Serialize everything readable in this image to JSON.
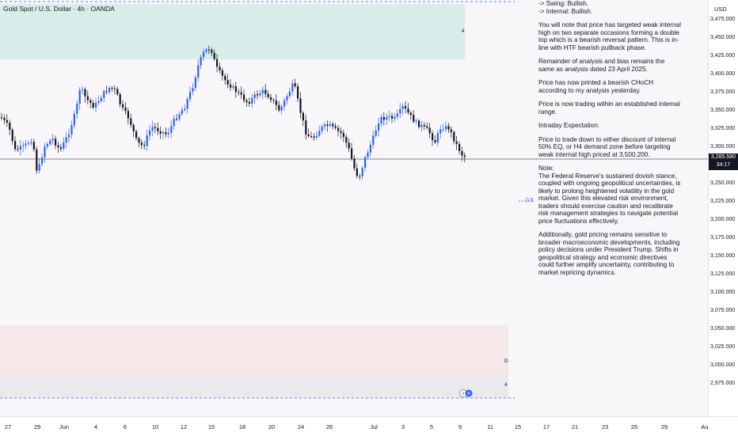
{
  "header": {
    "symbol_title": "Gold Spot / U.S. Dollar · 4h · OANDA"
  },
  "price_scale": {
    "currency": "USD",
    "labels": [
      "3,475.000",
      "3,450.000",
      "3,425.000",
      "3,400.000",
      "3,375.000",
      "3,350.000",
      "3,325.000",
      "3,300.000",
      "3,250.000",
      "3,225.000",
      "3,200.000",
      "3,175.000",
      "3,150.000",
      "3,125.000",
      "3,100.000",
      "3,075.000",
      "3,050.000",
      "3,025.000",
      "3,000.000",
      "2,975.000"
    ],
    "last_price": "3,285.580",
    "countdown": "34:17"
  },
  "time_scale": {
    "labels": [
      "27",
      "29",
      "Jun",
      "4",
      "6",
      "10",
      "12",
      "15",
      "18",
      "20",
      "24",
      "26",
      "Jul",
      "3",
      "5",
      "9",
      "11",
      "15",
      "17",
      "21",
      "23",
      "25",
      "29",
      "Au"
    ]
  },
  "annotations": {
    "fib_label": "0.5",
    "zone_marker_top": "4",
    "zone_marker_d": "D",
    "zone_marker_bottom": "4"
  },
  "analysis": {
    "line1": "-> Swing:  Bullish.",
    "line2": "-> Internal:  Bullish.",
    "p1": "You will note that price has targeted weak internal high on two separate occasions forming a double top which is a bearish reversal pattern. This is in-line with HTF bearish pullback phase.",
    "p2": "Remainder of analysis and bias remains the same as analysis dated 23 April 2025.",
    "p3": "Price has now printed a bearish CHoCH according to my analysis yesterday.",
    "p4": "Price is now trading within an established internal range.",
    "p5": "Intraday Expectation:",
    "p6": "Price to trade down to either discount of internal 50% EQ, or H4 demand zone before targeting weak internal high priced at 3,500.200.",
    "p7": "Note:",
    "p8": "The Federal Reserve's sustained dovish stance, coupled with ongoing geopolitical uncertainties, is likely to prolong heightened volatility in the gold market. Given this elevated risk environment, traders should exercise caution and recalibrate risk management strategies to navigate potential price fluctuations effectively.",
    "p9": "Additionally, gold pricing remains sensitive to broader macroeconomic developments, including policy decisions under President Trump. Shifts in geopolitical strategy and economic directives could further amplify uncertainty, contributing to market repricing dynamics."
  },
  "colors": {
    "bull": "#2962ff",
    "bear": "#131722",
    "supply_zone": "#d6ecea",
    "demand_zone": "#f6e6e6",
    "lower_zone": "#ece8ee"
  }
}
